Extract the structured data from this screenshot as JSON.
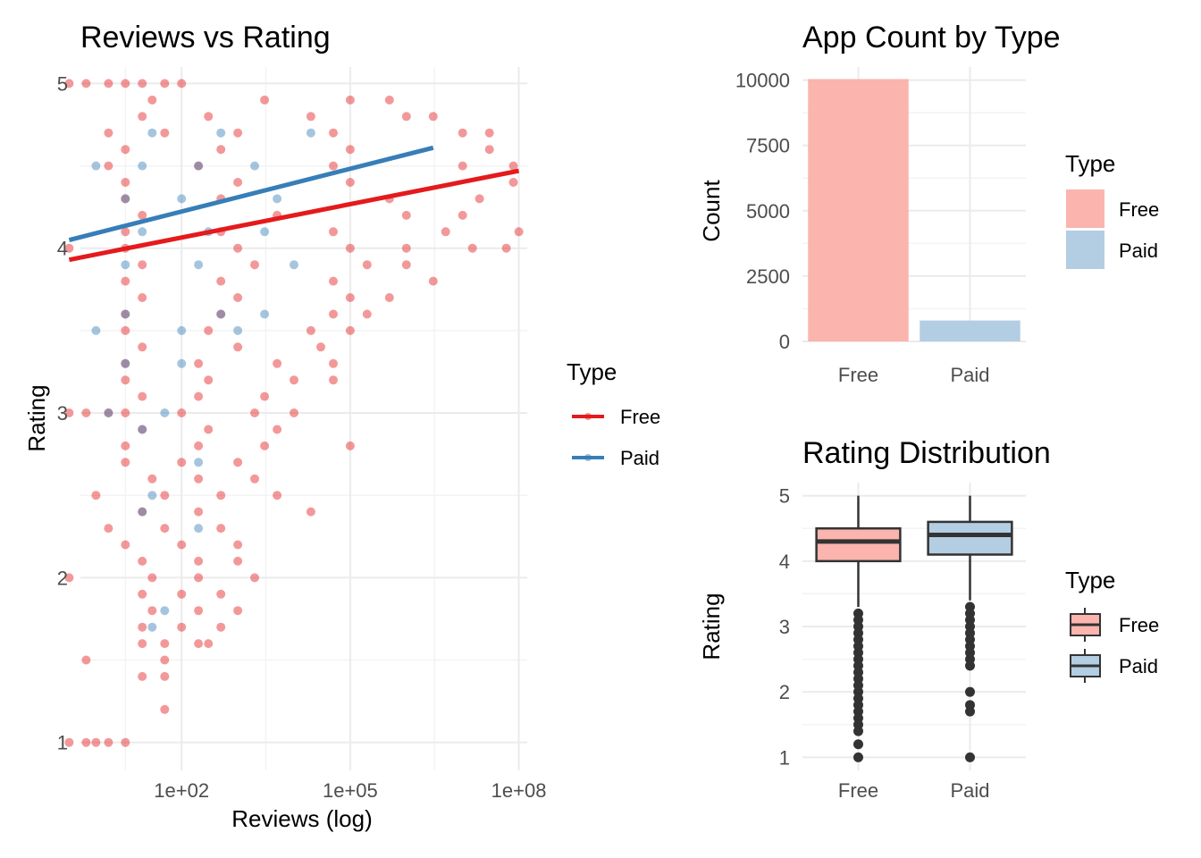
{
  "chart_data": [
    {
      "type": "scatter",
      "title": "Reviews vs Rating",
      "xlabel": "Reviews (log)",
      "ylabel": "Rating",
      "x_scale": "log10",
      "xlim": [
        1,
        100000000.0
      ],
      "ylim": [
        1,
        5
      ],
      "x_ticks": [
        {
          "value": 100,
          "label": "1e+02"
        },
        {
          "value": 100000,
          "label": "1e+05"
        },
        {
          "value": 100000000,
          "label": "1e+08"
        }
      ],
      "y_ticks": [
        1,
        2,
        3,
        4,
        5
      ],
      "grid": true,
      "legend": {
        "title": "Type",
        "placement": "right",
        "entries": [
          "Free",
          "Paid"
        ]
      },
      "colors": {
        "Free": "#E41A1C",
        "Paid": "#377EB8"
      },
      "series": [
        {
          "name": "Free",
          "points": [
            [
              1,
              5
            ],
            [
              2,
              5
            ],
            [
              5,
              5
            ],
            [
              10,
              5
            ],
            [
              20,
              5
            ],
            [
              50,
              5
            ],
            [
              100,
              5
            ],
            [
              1,
              4
            ],
            [
              1,
              3
            ],
            [
              2,
              3
            ],
            [
              5,
              3
            ],
            [
              1,
              2
            ],
            [
              1,
              1
            ],
            [
              2,
              1
            ],
            [
              3,
              1
            ],
            [
              5,
              1
            ],
            [
              10,
              1
            ],
            [
              2,
              1.5
            ],
            [
              30,
              4.9
            ],
            [
              3000,
              4.9
            ],
            [
              100000,
              4.9
            ],
            [
              500000,
              4.9
            ],
            [
              20,
              4.8
            ],
            [
              300,
              4.8
            ],
            [
              20000,
              4.8
            ],
            [
              1000000,
              4.8
            ],
            [
              3000000,
              4.8
            ],
            [
              5,
              4.7
            ],
            [
              50,
              4.7
            ],
            [
              1000,
              4.7
            ],
            [
              50000,
              4.7
            ],
            [
              10000000,
              4.7
            ],
            [
              30000000,
              4.7
            ],
            [
              10,
              4.6
            ],
            [
              500,
              4.6
            ],
            [
              100000,
              4.6
            ],
            [
              30000000,
              4.6
            ],
            [
              5,
              4.5
            ],
            [
              200,
              4.5
            ],
            [
              50000,
              4.5
            ],
            [
              10000000,
              4.5
            ],
            [
              80000000,
              4.5
            ],
            [
              10,
              4.4
            ],
            [
              1000,
              4.4
            ],
            [
              100000,
              4.4
            ],
            [
              80000000,
              4.4
            ],
            [
              10,
              4.3
            ],
            [
              500,
              4.3
            ],
            [
              500000,
              4.3
            ],
            [
              20000000,
              4.3
            ],
            [
              20,
              4.2
            ],
            [
              5000,
              4.2
            ],
            [
              1000000,
              4.2
            ],
            [
              10000000,
              4.2
            ],
            [
              10,
              4.1
            ],
            [
              500,
              4.1
            ],
            [
              50000,
              4.1
            ],
            [
              5000000,
              4.1
            ],
            [
              100000000,
              4.1
            ],
            [
              10,
              4.0
            ],
            [
              1000,
              4.0
            ],
            [
              100000,
              4.0
            ],
            [
              1000000,
              4.0
            ],
            [
              15000000,
              4.0
            ],
            [
              60000000,
              4.0
            ],
            [
              20,
              3.9
            ],
            [
              2000,
              3.9
            ],
            [
              200000,
              3.9
            ],
            [
              1000000,
              3.9
            ],
            [
              10,
              3.8
            ],
            [
              500,
              3.8
            ],
            [
              50000,
              3.8
            ],
            [
              3000000,
              3.8
            ],
            [
              20,
              3.7
            ],
            [
              1000,
              3.7
            ],
            [
              100000,
              3.7
            ],
            [
              500000,
              3.7
            ],
            [
              10,
              3.6
            ],
            [
              500,
              3.6
            ],
            [
              50000,
              3.6
            ],
            [
              200000,
              3.6
            ],
            [
              10,
              3.5
            ],
            [
              300,
              3.5
            ],
            [
              20000,
              3.5
            ],
            [
              100000,
              3.5
            ],
            [
              20,
              3.4
            ],
            [
              1000,
              3.4
            ],
            [
              30000,
              3.4
            ],
            [
              10,
              3.3
            ],
            [
              200,
              3.3
            ],
            [
              5000,
              3.3
            ],
            [
              50000,
              3.3
            ],
            [
              10,
              3.2
            ],
            [
              300,
              3.2
            ],
            [
              10000,
              3.2
            ],
            [
              50000,
              3.2
            ],
            [
              20,
              3.1
            ],
            [
              200,
              3.1
            ],
            [
              3000,
              3.1
            ],
            [
              10,
              3.0
            ],
            [
              100,
              3.0
            ],
            [
              2000,
              3.0
            ],
            [
              10000,
              3.0
            ],
            [
              20,
              2.9
            ],
            [
              300,
              2.9
            ],
            [
              5000,
              2.9
            ],
            [
              10,
              2.8
            ],
            [
              200,
              2.8
            ],
            [
              3000,
              2.8
            ],
            [
              100000,
              2.8
            ],
            [
              10,
              2.7
            ],
            [
              100,
              2.7
            ],
            [
              1000,
              2.7
            ],
            [
              30,
              2.6
            ],
            [
              200,
              2.6
            ],
            [
              2000,
              2.6
            ],
            [
              3,
              2.5
            ],
            [
              50,
              2.5
            ],
            [
              500,
              2.5
            ],
            [
              5000,
              2.5
            ],
            [
              20,
              2.4
            ],
            [
              200,
              2.4
            ],
            [
              20000,
              2.4
            ],
            [
              5,
              2.3
            ],
            [
              50,
              2.3
            ],
            [
              500,
              2.3
            ],
            [
              10,
              2.2
            ],
            [
              100,
              2.2
            ],
            [
              1000,
              2.2
            ],
            [
              20,
              2.1
            ],
            [
              200,
              2.1
            ],
            [
              1000,
              2.1
            ],
            [
              30,
              2.0
            ],
            [
              200,
              2.0
            ],
            [
              2000,
              2.0
            ],
            [
              20,
              1.9
            ],
            [
              100,
              1.9
            ],
            [
              500,
              1.9
            ],
            [
              30,
              1.8
            ],
            [
              200,
              1.8
            ],
            [
              1000,
              1.8
            ],
            [
              20,
              1.7
            ],
            [
              100,
              1.7
            ],
            [
              500,
              1.7
            ],
            [
              20,
              1.6
            ],
            [
              50,
              1.6
            ],
            [
              200,
              1.6
            ],
            [
              300,
              1.6
            ],
            [
              50,
              1.5
            ],
            [
              20,
              1.4
            ],
            [
              50,
              1.4
            ],
            [
              50,
              1.2
            ]
          ]
        },
        {
          "name": "Paid",
          "points": [
            [
              3,
              4.5
            ],
            [
              20,
              4.5
            ],
            [
              200,
              4.5
            ],
            [
              2000,
              4.5
            ],
            [
              10,
              4.3
            ],
            [
              100,
              4.3
            ],
            [
              5000,
              4.3
            ],
            [
              30,
              4.7
            ],
            [
              500,
              4.7
            ],
            [
              20000,
              4.7
            ],
            [
              20,
              4.1
            ],
            [
              300,
              4.1
            ],
            [
              3000,
              4.1
            ],
            [
              10,
              3.9
            ],
            [
              200,
              3.9
            ],
            [
              10000,
              3.9
            ],
            [
              10,
              3.6
            ],
            [
              500,
              3.6
            ],
            [
              3000,
              3.6
            ],
            [
              3,
              3.5
            ],
            [
              100,
              3.5
            ],
            [
              1000,
              3.5
            ],
            [
              10,
              3.3
            ],
            [
              100,
              3.3
            ],
            [
              5,
              3.0
            ],
            [
              50,
              3.0
            ],
            [
              20,
              2.9
            ],
            [
              200,
              2.7
            ],
            [
              30,
              2.5
            ],
            [
              20,
              2.4
            ],
            [
              200,
              2.3
            ],
            [
              50,
              1.8
            ],
            [
              30,
              1.7
            ]
          ]
        }
      ],
      "trend_lines": [
        {
          "name": "Free",
          "from": [
            1,
            3.93
          ],
          "to": [
            100000000,
            4.47
          ]
        },
        {
          "name": "Paid",
          "from": [
            1,
            4.05
          ],
          "to": [
            3000000,
            4.61
          ]
        }
      ]
    },
    {
      "type": "bar",
      "title": "App Count by Type",
      "xlabel": "",
      "ylabel": "Count",
      "categories": [
        "Free",
        "Paid"
      ],
      "values": [
        10040,
        800
      ],
      "ylim": [
        0,
        10040
      ],
      "y_ticks": [
        0,
        2500,
        5000,
        7500,
        10000
      ],
      "grid": true,
      "legend": {
        "title": "Type",
        "placement": "right",
        "entries": [
          "Free",
          "Paid"
        ]
      },
      "colors": {
        "Free": "#FBB4AE",
        "Paid": "#B3CDE3"
      }
    },
    {
      "type": "boxplot",
      "title": "Rating Distribution",
      "xlabel": "",
      "ylabel": "Rating",
      "categories": [
        "Free",
        "Paid"
      ],
      "ylim": [
        1,
        5
      ],
      "y_ticks": [
        1,
        2,
        3,
        4,
        5
      ],
      "grid": true,
      "legend": {
        "title": "Type",
        "placement": "right",
        "entries": [
          "Free",
          "Paid"
        ]
      },
      "colors": {
        "Free": "#FBB4AE",
        "Paid": "#B3CDE3"
      },
      "boxes": [
        {
          "name": "Free",
          "q1": 4.0,
          "median": 4.3,
          "q3": 4.5,
          "whisker_low": 3.3,
          "whisker_high": 5.0,
          "outliers": [
            3.2,
            3.1,
            3.0,
            2.9,
            2.8,
            2.7,
            2.6,
            2.5,
            2.4,
            2.3,
            2.2,
            2.1,
            2.0,
            1.9,
            1.8,
            1.7,
            1.6,
            1.5,
            1.4,
            1.2,
            1.0
          ]
        },
        {
          "name": "Paid",
          "q1": 4.1,
          "median": 4.4,
          "q3": 4.6,
          "whisker_low": 3.4,
          "whisker_high": 5.0,
          "outliers": [
            3.3,
            3.2,
            3.1,
            3.0,
            2.9,
            2.8,
            2.7,
            2.6,
            2.5,
            2.4,
            2.0,
            1.8,
            1.7,
            1.0
          ]
        }
      ]
    }
  ]
}
